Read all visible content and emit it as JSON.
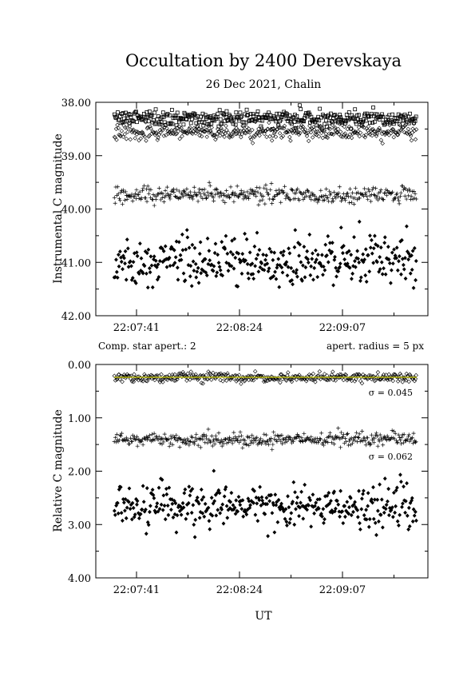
{
  "chart_data": [
    {
      "type": "scatter",
      "title": "Occultation by 2400 Derevskaya",
      "subtitle": "26 Dec 2021, Chalin",
      "xlabel": "",
      "ylabel": "Instrumental C magnitude",
      "x_ticks": [
        "22:07:41",
        "22:08:24",
        "22:09:07"
      ],
      "y_ticks": [
        "38.00",
        "39.00",
        "40.00",
        "41.00",
        "42.00"
      ],
      "ylim": [
        38.0,
        42.0
      ],
      "y_inverted": true,
      "x_range_s": [
        0,
        135
      ],
      "series": [
        {
          "marker": "square",
          "mean": 38.3,
          "spread": 0.07
        },
        {
          "marker": "diamond-open",
          "mean": 38.55,
          "spread": 0.07
        },
        {
          "marker": "plus",
          "mean": 39.73,
          "spread": 0.08
        },
        {
          "marker": "diamond-filled",
          "mean": 40.97,
          "spread": 0.22
        }
      ]
    },
    {
      "type": "scatter",
      "xlabel": "UT",
      "ylabel": "Relative C magnitude",
      "x_ticks": [
        "22:07:41",
        "22:08:24",
        "22:09:07"
      ],
      "y_ticks": [
        "0.00",
        "1.00",
        "2.00",
        "3.00",
        "4.00"
      ],
      "ylim": [
        0.0,
        4.0
      ],
      "y_inverted": true,
      "x_range_s": [
        0,
        135
      ],
      "series": [
        {
          "marker": "diamond-open",
          "mean": 0.24,
          "spread": 0.045,
          "fit_line_color": "#c8c800",
          "sigma_label": "σ = 0.045"
        },
        {
          "marker": "plus",
          "mean": 1.4,
          "spread": 0.062,
          "sigma_label": "σ = 0.062"
        },
        {
          "marker": "diamond-filled",
          "mean": 2.67,
          "spread": 0.2
        }
      ]
    }
  ],
  "info": {
    "comp_star": "Comp. star apert.: 2",
    "aperture": "apert. radius = 5 px"
  }
}
